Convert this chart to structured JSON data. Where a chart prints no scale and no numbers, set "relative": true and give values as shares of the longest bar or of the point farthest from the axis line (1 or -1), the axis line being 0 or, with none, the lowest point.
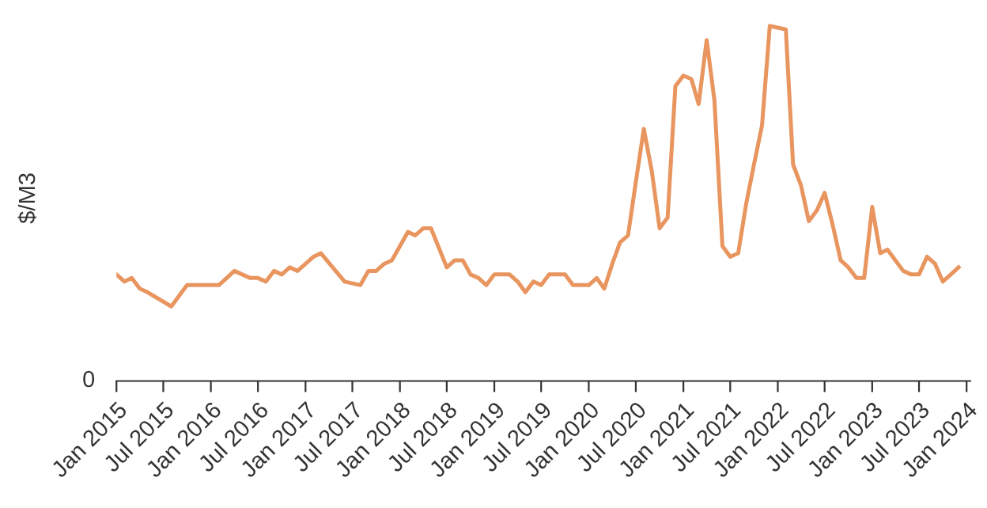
{
  "chart_data": {
    "type": "line",
    "ylabel": "$/M3",
    "relative": true,
    "annotations": [
      "0"
    ],
    "grid": false,
    "legend": false,
    "marker": "none",
    "line_style": "solid",
    "xlim": [
      "2015-01",
      "2024-01-15"
    ],
    "xticks": [
      {
        "value": "2015-01",
        "label": "Jan 2015"
      },
      {
        "value": "2015-07",
        "label": "Jul 2015"
      },
      {
        "value": "2016-01",
        "label": "Jan 2016"
      },
      {
        "value": "2016-07",
        "label": "Jul 2016"
      },
      {
        "value": "2017-01",
        "label": "Jan 2017"
      },
      {
        "value": "2017-07",
        "label": "Jul 2017"
      },
      {
        "value": "2018-01",
        "label": "Jan 2018"
      },
      {
        "value": "2018-07",
        "label": "Jul 2018"
      },
      {
        "value": "2019-01",
        "label": "Jan 2019"
      },
      {
        "value": "2019-07",
        "label": "Jul 2019"
      },
      {
        "value": "2020-01",
        "label": "Jan 2020"
      },
      {
        "value": "2020-07",
        "label": "Jul 2020"
      },
      {
        "value": "2021-01",
        "label": "Jan 2021"
      },
      {
        "value": "2021-07",
        "label": "Jul 2021"
      },
      {
        "value": "2022-01",
        "label": "Jan 2022"
      },
      {
        "value": "2022-07",
        "label": "Jul 2022"
      },
      {
        "value": "2023-01",
        "label": "Jan 2023"
      },
      {
        "value": "2023-07",
        "label": "Jul 2023"
      },
      {
        "value": "2024-01",
        "label": "Jan 2024"
      }
    ],
    "x": [
      "2015-01",
      "2015-02",
      "2015-03",
      "2015-04",
      "2015-05",
      "2015-08",
      "2015-10",
      "2016-02",
      "2016-04",
      "2016-06",
      "2016-07",
      "2016-08",
      "2016-09",
      "2016-10",
      "2016-11",
      "2016-12",
      "2017-02",
      "2017-03",
      "2017-06",
      "2017-08",
      "2017-09",
      "2017-10",
      "2017-11",
      "2017-12",
      "2018-02",
      "2018-03",
      "2018-04",
      "2018-05",
      "2018-07",
      "2018-08",
      "2018-09",
      "2018-10",
      "2018-11",
      "2018-12",
      "2019-01",
      "2019-03",
      "2019-04",
      "2019-05",
      "2019-06",
      "2019-07",
      "2019-08",
      "2019-10",
      "2019-11",
      "2019-12",
      "2020-01",
      "2020-02",
      "2020-03",
      "2020-04",
      "2020-05",
      "2020-06",
      "2020-07",
      "2020-08",
      "2020-09",
      "2020-10",
      "2020-11",
      "2020-12",
      "2021-01",
      "2021-02",
      "2021-03",
      "2021-04",
      "2021-05",
      "2021-06",
      "2021-07",
      "2021-08",
      "2021-09",
      "2021-10",
      "2021-11",
      "2021-12",
      "2022-02",
      "2022-03",
      "2022-04",
      "2022-05",
      "2022-06",
      "2022-07",
      "2022-08",
      "2022-09",
      "2022-10",
      "2022-11",
      "2022-12",
      "2023-01",
      "2023-02",
      "2023-03",
      "2023-05",
      "2023-06",
      "2023-07",
      "2023-08",
      "2023-09",
      "2023-10",
      "2023-11",
      "2023-12"
    ],
    "series": [
      {
        "color": "#e8955f",
        "values": [
          0.3,
          0.28,
          0.29,
          0.26,
          0.25,
          0.21,
          0.27,
          0.27,
          0.31,
          0.29,
          0.29,
          0.28,
          0.31,
          0.3,
          0.32,
          0.31,
          0.35,
          0.36,
          0.28,
          0.27,
          0.31,
          0.31,
          0.33,
          0.34,
          0.42,
          0.41,
          0.43,
          0.43,
          0.32,
          0.34,
          0.34,
          0.3,
          0.29,
          0.27,
          0.3,
          0.3,
          0.28,
          0.25,
          0.28,
          0.27,
          0.3,
          0.3,
          0.27,
          0.27,
          0.27,
          0.29,
          0.26,
          0.33,
          0.39,
          0.41,
          0.56,
          0.71,
          0.59,
          0.43,
          0.46,
          0.83,
          0.86,
          0.85,
          0.78,
          0.96,
          0.79,
          0.38,
          0.35,
          0.36,
          0.5,
          0.61,
          0.72,
          1.0,
          0.99,
          0.61,
          0.55,
          0.45,
          0.48,
          0.53,
          0.44,
          0.34,
          0.32,
          0.29,
          0.29,
          0.49,
          0.36,
          0.37,
          0.31,
          0.3,
          0.3,
          0.35,
          0.33,
          0.28,
          0.3,
          0.32
        ]
      }
    ]
  }
}
